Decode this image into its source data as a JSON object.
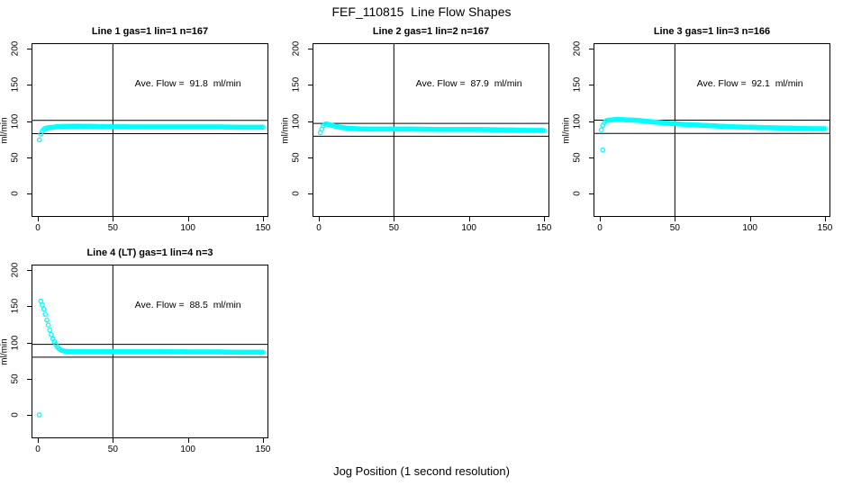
{
  "main_title": "FEF_110815  Line Flow Shapes",
  "outer_xlabel": "Jog Position (1 second resolution)",
  "colors": {
    "marker": "#00FFFF",
    "axis": "#000000",
    "background": "#FFFFFF"
  },
  "chart_data": {
    "type": "scatter",
    "title": "FEF_110815  Line Flow Shapes",
    "xlabel": "Jog Position (1 second resolution)",
    "ylabel": "ml/min",
    "x_ticks": [
      0,
      50,
      100,
      150
    ],
    "y_ticks": [
      0,
      50,
      100,
      150,
      200
    ],
    "xlim": [
      -4.2,
      153.6
    ],
    "ylim": [
      -32.3,
      207.5
    ],
    "grid": false,
    "legend": null,
    "marker": "open-circle",
    "marker_color": "#00FFFF",
    "vline_x": 50,
    "panels": [
      {
        "title": "Line 1 gas=1 lin=1 n=167",
        "annotation": "Ave. Flow =  91.8  ml/min",
        "ave_flow_ml_min": 91.8,
        "ref_lines_y": [
          100.98,
          82.62
        ],
        "series_keypoints": [
          [
            1,
            74
          ],
          [
            2,
            82
          ],
          [
            3,
            86
          ],
          [
            4,
            88.5
          ],
          [
            5,
            90
          ],
          [
            7,
            91
          ],
          [
            10,
            91.5
          ],
          [
            15,
            92.5
          ],
          [
            25,
            93
          ],
          [
            40,
            92.5
          ],
          [
            60,
            92
          ],
          [
            80,
            92
          ],
          [
            100,
            92
          ],
          [
            120,
            92
          ],
          [
            135,
            91.5
          ],
          [
            150,
            91.5
          ]
        ],
        "outliers": []
      },
      {
        "title": "Line 2 gas=1 lin=2 n=167",
        "annotation": "Ave. Flow =  87.9  ml/min",
        "ave_flow_ml_min": 87.9,
        "ref_lines_y": [
          96.69,
          79.11
        ],
        "series_keypoints": [
          [
            1,
            84
          ],
          [
            2,
            89
          ],
          [
            3,
            93.5
          ],
          [
            4,
            95.5
          ],
          [
            5,
            96
          ],
          [
            6,
            95.5
          ],
          [
            8,
            94.5
          ],
          [
            10,
            93.5
          ],
          [
            13,
            92
          ],
          [
            16,
            91
          ],
          [
            20,
            90
          ],
          [
            25,
            89.5
          ],
          [
            30,
            89
          ],
          [
            40,
            89
          ],
          [
            60,
            89
          ],
          [
            80,
            88.5
          ],
          [
            100,
            88.5
          ],
          [
            120,
            88
          ],
          [
            135,
            87.5
          ],
          [
            150,
            87
          ]
        ],
        "outliers": []
      },
      {
        "title": "Line 3 gas=1 lin=3 n=166",
        "annotation": "Ave. Flow =  92.1  ml/min",
        "ave_flow_ml_min": 92.1,
        "ref_lines_y": [
          101.31,
          82.89
        ],
        "series_keypoints": [
          [
            1,
            88
          ],
          [
            2,
            94
          ],
          [
            3,
            98
          ],
          [
            4,
            100
          ],
          [
            5,
            101
          ],
          [
            7,
            101.5
          ],
          [
            10,
            102
          ],
          [
            15,
            102
          ],
          [
            20,
            101.5
          ],
          [
            25,
            101
          ],
          [
            30,
            100
          ],
          [
            35,
            99
          ],
          [
            40,
            98
          ],
          [
            45,
            97
          ],
          [
            50,
            96.5
          ],
          [
            55,
            95.5
          ],
          [
            60,
            95
          ],
          [
            70,
            94
          ],
          [
            80,
            93
          ],
          [
            90,
            92
          ],
          [
            100,
            91.5
          ],
          [
            110,
            91
          ],
          [
            120,
            90.5
          ],
          [
            130,
            90
          ],
          [
            140,
            89.5
          ],
          [
            150,
            89.5
          ]
        ],
        "outliers": [
          [
            2,
            60
          ]
        ]
      },
      {
        "title": "Line 4 (LT) gas=1 lin=4 n=3",
        "annotation": "Ave. Flow =  88.5  ml/min",
        "ave_flow_ml_min": 88.5,
        "ref_lines_y": [
          97.35,
          79.65
        ],
        "series_keypoints": [
          [
            2,
            157
          ],
          [
            3,
            152
          ],
          [
            4,
            146
          ],
          [
            5,
            139
          ],
          [
            6,
            131
          ],
          [
            7,
            124
          ],
          [
            8,
            117
          ],
          [
            9,
            111
          ],
          [
            10,
            105
          ],
          [
            11,
            101
          ],
          [
            12,
            97
          ],
          [
            13,
            94
          ],
          [
            14,
            91.5
          ],
          [
            15,
            90
          ],
          [
            16,
            89
          ],
          [
            17,
            88.5
          ],
          [
            18,
            88
          ],
          [
            20,
            87.5
          ],
          [
            30,
            87.5
          ],
          [
            50,
            87.5
          ],
          [
            80,
            87.5
          ],
          [
            100,
            87
          ],
          [
            120,
            87
          ],
          [
            135,
            86.5
          ],
          [
            150,
            86.5
          ]
        ],
        "outliers": [
          [
            1,
            0
          ]
        ]
      }
    ]
  }
}
